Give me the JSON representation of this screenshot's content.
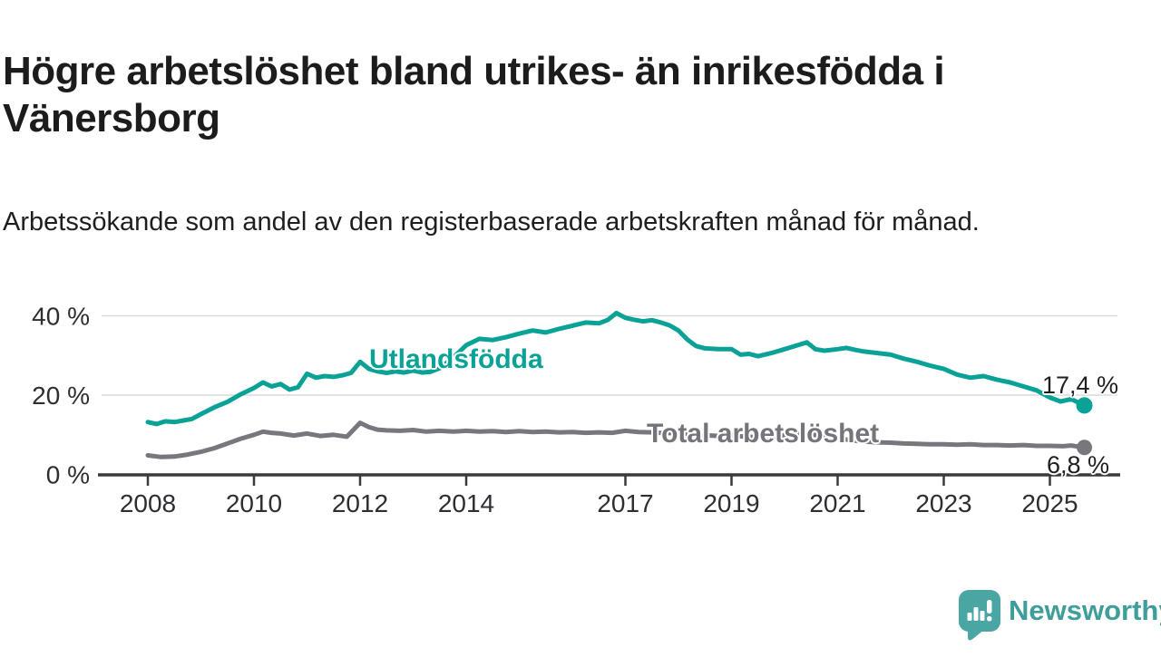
{
  "header": {
    "title": "Högre arbetslöshet bland utrikes- än inrikesfödda i Vänersborg",
    "subtitle": "Arbetssökande som andel av den registerbaserade arbetskraften månad för månad."
  },
  "chart_data": {
    "type": "line",
    "title": "Högre arbetslöshet bland utrikes- än inrikesfödda i Vänersborg",
    "xlabel": "",
    "ylabel": "",
    "unit": "%",
    "grid": "horizontal",
    "legend_position": "inline-labels-on-lines",
    "x_axis": {
      "tick_years": [
        2008,
        2010,
        2012,
        2014,
        2017,
        2019,
        2021,
        2023,
        2025
      ],
      "range_years": [
        2007.15,
        2026.3
      ]
    },
    "y_axis": {
      "ticks": [
        {
          "value": 0,
          "label": "0 %"
        },
        {
          "value": 20,
          "label": "20 %"
        },
        {
          "value": 40,
          "label": "40 %"
        }
      ],
      "gridline_values": [
        20,
        40
      ],
      "range": [
        0,
        44
      ]
    },
    "series": [
      {
        "name": "Utlandsfödda",
        "color": "#0aa296",
        "end_label": "17,4 %",
        "end_value": 17.4,
        "points": [
          [
            2008.0,
            13.2
          ],
          [
            2008.17,
            12.7
          ],
          [
            2008.33,
            13.4
          ],
          [
            2008.5,
            13.2
          ],
          [
            2008.67,
            13.6
          ],
          [
            2008.83,
            14.0
          ],
          [
            2009.0,
            15.2
          ],
          [
            2009.25,
            16.9
          ],
          [
            2009.5,
            18.3
          ],
          [
            2009.75,
            20.2
          ],
          [
            2010.0,
            21.8
          ],
          [
            2010.17,
            23.2
          ],
          [
            2010.33,
            22.2
          ],
          [
            2010.5,
            22.8
          ],
          [
            2010.67,
            21.4
          ],
          [
            2010.83,
            22.0
          ],
          [
            2011.0,
            25.4
          ],
          [
            2011.17,
            24.4
          ],
          [
            2011.33,
            24.8
          ],
          [
            2011.5,
            24.6
          ],
          [
            2011.67,
            25.0
          ],
          [
            2011.83,
            25.6
          ],
          [
            2012.0,
            28.4
          ],
          [
            2012.17,
            26.6
          ],
          [
            2012.33,
            26.0
          ],
          [
            2012.5,
            25.6
          ],
          [
            2012.67,
            26.0
          ],
          [
            2012.83,
            25.7
          ],
          [
            2013.0,
            26.2
          ],
          [
            2013.17,
            25.7
          ],
          [
            2013.33,
            25.9
          ],
          [
            2013.5,
            26.8
          ],
          [
            2013.75,
            29.4
          ],
          [
            2014.0,
            32.6
          ],
          [
            2014.25,
            34.2
          ],
          [
            2014.5,
            33.9
          ],
          [
            2014.75,
            34.6
          ],
          [
            2015.0,
            35.5
          ],
          [
            2015.25,
            36.3
          ],
          [
            2015.5,
            35.8
          ],
          [
            2015.75,
            36.7
          ],
          [
            2016.0,
            37.5
          ],
          [
            2016.25,
            38.3
          ],
          [
            2016.5,
            38.1
          ],
          [
            2016.67,
            39.0
          ],
          [
            2016.83,
            40.7
          ],
          [
            2017.0,
            39.5
          ],
          [
            2017.17,
            39.0
          ],
          [
            2017.33,
            38.6
          ],
          [
            2017.5,
            38.9
          ],
          [
            2017.67,
            38.3
          ],
          [
            2017.83,
            37.6
          ],
          [
            2018.0,
            36.3
          ],
          [
            2018.17,
            34.0
          ],
          [
            2018.33,
            32.4
          ],
          [
            2018.5,
            31.8
          ],
          [
            2018.75,
            31.6
          ],
          [
            2019.0,
            31.6
          ],
          [
            2019.17,
            30.2
          ],
          [
            2019.33,
            30.4
          ],
          [
            2019.5,
            29.8
          ],
          [
            2019.75,
            30.6
          ],
          [
            2020.0,
            31.6
          ],
          [
            2020.25,
            32.6
          ],
          [
            2020.42,
            33.3
          ],
          [
            2020.58,
            31.6
          ],
          [
            2020.75,
            31.2
          ],
          [
            2021.0,
            31.6
          ],
          [
            2021.17,
            31.9
          ],
          [
            2021.33,
            31.4
          ],
          [
            2021.5,
            31.0
          ],
          [
            2021.75,
            30.6
          ],
          [
            2022.0,
            30.2
          ],
          [
            2022.25,
            29.2
          ],
          [
            2022.5,
            28.4
          ],
          [
            2022.75,
            27.4
          ],
          [
            2023.0,
            26.6
          ],
          [
            2023.25,
            25.2
          ],
          [
            2023.5,
            24.4
          ],
          [
            2023.75,
            24.8
          ],
          [
            2024.0,
            23.9
          ],
          [
            2024.25,
            23.2
          ],
          [
            2024.5,
            22.2
          ],
          [
            2024.75,
            21.2
          ],
          [
            2025.0,
            19.4
          ],
          [
            2025.2,
            18.4
          ],
          [
            2025.4,
            19.0
          ],
          [
            2025.65,
            17.4
          ]
        ]
      },
      {
        "name": "Total arbetslöshet",
        "color": "#77777d",
        "end_label": "6,8 %",
        "end_value": 6.8,
        "points": [
          [
            2008.0,
            4.8
          ],
          [
            2008.25,
            4.4
          ],
          [
            2008.5,
            4.5
          ],
          [
            2008.75,
            5.0
          ],
          [
            2009.0,
            5.7
          ],
          [
            2009.25,
            6.6
          ],
          [
            2009.5,
            7.8
          ],
          [
            2009.75,
            9.0
          ],
          [
            2010.0,
            10.0
          ],
          [
            2010.17,
            10.8
          ],
          [
            2010.33,
            10.5
          ],
          [
            2010.5,
            10.3
          ],
          [
            2010.75,
            9.8
          ],
          [
            2011.0,
            10.3
          ],
          [
            2011.25,
            9.7
          ],
          [
            2011.5,
            10.0
          ],
          [
            2011.75,
            9.5
          ],
          [
            2012.0,
            13.0
          ],
          [
            2012.17,
            11.9
          ],
          [
            2012.33,
            11.3
          ],
          [
            2012.5,
            11.1
          ],
          [
            2012.75,
            11.0
          ],
          [
            2013.0,
            11.2
          ],
          [
            2013.25,
            10.8
          ],
          [
            2013.5,
            11.0
          ],
          [
            2013.75,
            10.8
          ],
          [
            2014.0,
            11.0
          ],
          [
            2014.25,
            10.8
          ],
          [
            2014.5,
            10.9
          ],
          [
            2014.75,
            10.7
          ],
          [
            2015.0,
            10.9
          ],
          [
            2015.25,
            10.7
          ],
          [
            2015.5,
            10.8
          ],
          [
            2015.75,
            10.6
          ],
          [
            2016.0,
            10.7
          ],
          [
            2016.25,
            10.5
          ],
          [
            2016.5,
            10.6
          ],
          [
            2016.75,
            10.5
          ],
          [
            2017.0,
            11.0
          ],
          [
            2017.25,
            10.7
          ],
          [
            2017.5,
            10.6
          ],
          [
            2017.75,
            10.4
          ],
          [
            2018.0,
            10.5
          ],
          [
            2018.25,
            10.1
          ],
          [
            2018.5,
            9.9
          ],
          [
            2018.75,
            9.7
          ],
          [
            2019.0,
            9.8
          ],
          [
            2019.25,
            9.5
          ],
          [
            2019.5,
            9.4
          ],
          [
            2019.75,
            9.6
          ],
          [
            2020.0,
            9.9
          ],
          [
            2020.25,
            10.3
          ],
          [
            2020.5,
            10.1
          ],
          [
            2020.75,
            9.5
          ],
          [
            2021.0,
            9.1
          ],
          [
            2021.25,
            8.6
          ],
          [
            2021.5,
            8.3
          ],
          [
            2021.75,
            8.1
          ],
          [
            2022.0,
            8.0
          ],
          [
            2022.25,
            7.8
          ],
          [
            2022.5,
            7.7
          ],
          [
            2022.75,
            7.6
          ],
          [
            2023.0,
            7.6
          ],
          [
            2023.25,
            7.5
          ],
          [
            2023.5,
            7.6
          ],
          [
            2023.75,
            7.4
          ],
          [
            2024.0,
            7.4
          ],
          [
            2024.25,
            7.3
          ],
          [
            2024.5,
            7.4
          ],
          [
            2024.75,
            7.2
          ],
          [
            2025.0,
            7.2
          ],
          [
            2025.25,
            7.1
          ],
          [
            2025.4,
            7.3
          ],
          [
            2025.65,
            6.8
          ]
        ]
      }
    ],
    "style": {
      "axis_color": "#3a3a3e",
      "gridline_color": "#d9d9d9",
      "tick_label_color": "#2e2e32",
      "line_width": 5
    }
  },
  "branding": {
    "logo_text": "Newsworthy",
    "logo_color": "#4aa6a3",
    "icon": "newsworthy-speech-bubble-bar-chart-icon"
  }
}
